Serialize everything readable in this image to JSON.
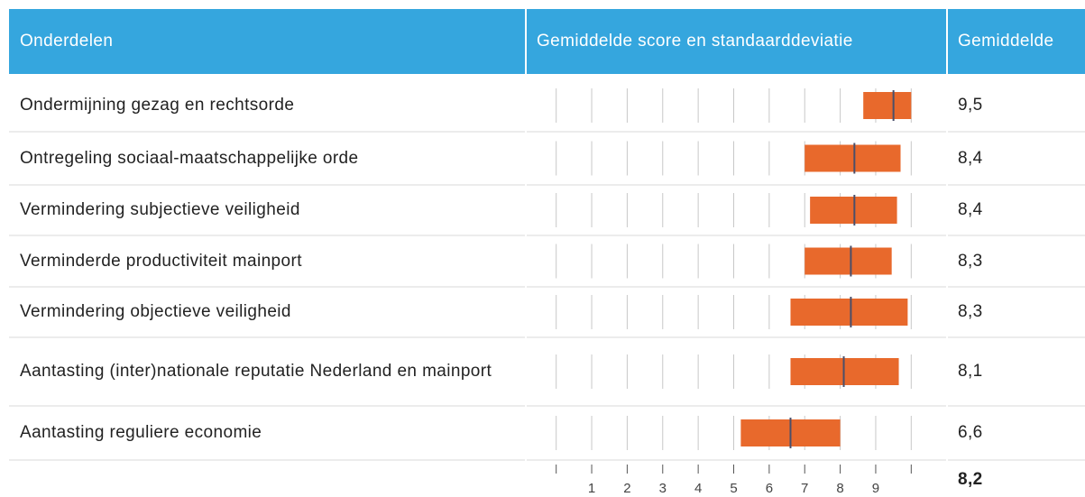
{
  "table": {
    "headers": [
      "Onderdelen",
      "Gemiddelde score en standaarddeviatie",
      "Gemiddelde"
    ],
    "rows": [
      {
        "label": "Ondermijning gezag en rechtsorde",
        "mean": 9.5,
        "mean_label": "9,5",
        "low": 8.65,
        "high": 10.0
      },
      {
        "label": "Ontregeling sociaal-maatschappelijke orde",
        "mean": 8.4,
        "mean_label": "8,4",
        "low": 7.0,
        "high": 9.7
      },
      {
        "label": "Vermindering subjectieve veiligheid",
        "mean": 8.4,
        "mean_label": "8,4",
        "low": 7.15,
        "high": 9.6
      },
      {
        "label": "Verminderde productiviteit mainport",
        "mean": 8.3,
        "mean_label": "8,3",
        "low": 7.0,
        "high": 9.45
      },
      {
        "label": "Vermindering objectieve veiligheid",
        "mean": 8.3,
        "mean_label": "8,3",
        "low": 6.6,
        "high": 9.9
      },
      {
        "label": "Aantasting (inter)nationale reputatie Nederland en mainport",
        "mean": 8.1,
        "mean_label": "8,1",
        "low": 6.6,
        "high": 9.65
      },
      {
        "label": "Aantasting reguliere economie",
        "mean": 6.6,
        "mean_label": "6,6",
        "low": 5.2,
        "high": 8.0
      }
    ],
    "overall_label": "8,2"
  },
  "scale": {
    "xlim": [
      -0.5,
      10.5
    ],
    "gridlines": [
      0,
      1,
      2,
      3,
      4,
      5,
      6,
      7,
      8,
      9,
      10
    ],
    "xticks": [
      1,
      2,
      3,
      4,
      5,
      6,
      7,
      8,
      9
    ],
    "box_color": "#e8692c",
    "mean_color": "#4a4f6a"
  }
}
